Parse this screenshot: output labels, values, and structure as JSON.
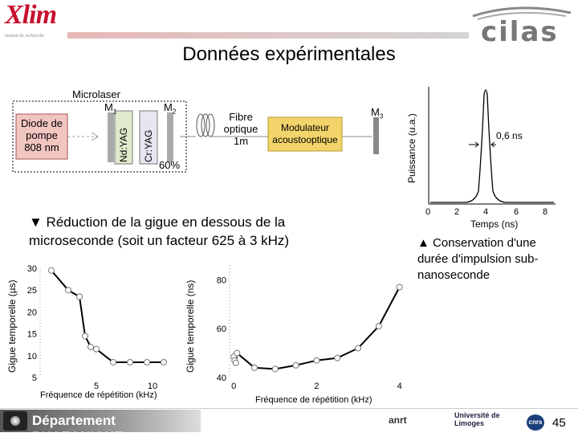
{
  "logos": {
    "xlim": "Xlim",
    "xlim_sub": "institut de recherche",
    "cilas": "cilas",
    "anrt": "anrt",
    "limoges": "Université de Limoges",
    "cnrs": "cnrs"
  },
  "title": "Données expérimentales",
  "setup": {
    "microlaser": "Microlaser",
    "m1": "M",
    "m1_sub": "1",
    "m2": "M",
    "m2_sub": "2",
    "m3": "M",
    "m3_sub": "3",
    "diode": [
      "Diode de",
      "pompe",
      "808 nm"
    ],
    "ndyag": "Nd:YAG",
    "cryag": "Cr:YAG",
    "percent": "60%",
    "fibre": [
      "Fibre",
      "optique",
      "1m"
    ],
    "modulator": [
      "Modulateur",
      "acoustooptique"
    ]
  },
  "pulse": {
    "ylabel": "Puissance (u.a.)",
    "xlabel": "Temps (ns)",
    "annotation": "0,6 ns",
    "ticks": [
      "0",
      "2",
      "4",
      "6",
      "8"
    ]
  },
  "caption_left": [
    "▼ Réduction de la gigue en dessous de la",
    "microseconde (soit un facteur 625 à 3 kHz)"
  ],
  "caption_right": [
    "▲ Conservation d'une",
    "durée d'impulsion sub-",
    "nanoseconde"
  ],
  "chart_data": [
    {
      "type": "line",
      "xlabel": "Fréquence de répétition (kHz)",
      "ylabel": "Gigue temporelle (µs)",
      "ylim": [
        5,
        30
      ],
      "xlim": [
        0,
        12
      ],
      "yticks": [
        "30",
        "25",
        "20",
        "15",
        "10",
        "5"
      ],
      "xticks": [
        "5",
        "10"
      ],
      "x": [
        1,
        2.5,
        3.5,
        4,
        4.5,
        5,
        6.5,
        8,
        9.5,
        11
      ],
      "y": [
        29.5,
        25,
        23.5,
        14.5,
        12,
        11.5,
        8.5,
        8.5,
        8.5,
        8.5
      ]
    },
    {
      "type": "line",
      "xlabel": "Fréquence de répétition (kHz)",
      "ylabel": "Gigue temporelle (ns)",
      "ylim": [
        40,
        86
      ],
      "xlim": [
        -0.1,
        4.2
      ],
      "yticks": [
        "80",
        "60",
        "40"
      ],
      "xticks": [
        "0",
        "2",
        "4"
      ],
      "x": [
        0,
        0.02,
        0.05,
        0.08,
        0.5,
        1,
        1.5,
        2,
        2.5,
        3,
        3.5,
        4
      ],
      "y": [
        48.5,
        47,
        46,
        50,
        44,
        43.5,
        45,
        47,
        48,
        52,
        61,
        77
      ]
    }
  ],
  "footer": {
    "dept": "Département PHOTONIQUE",
    "page": "45"
  }
}
